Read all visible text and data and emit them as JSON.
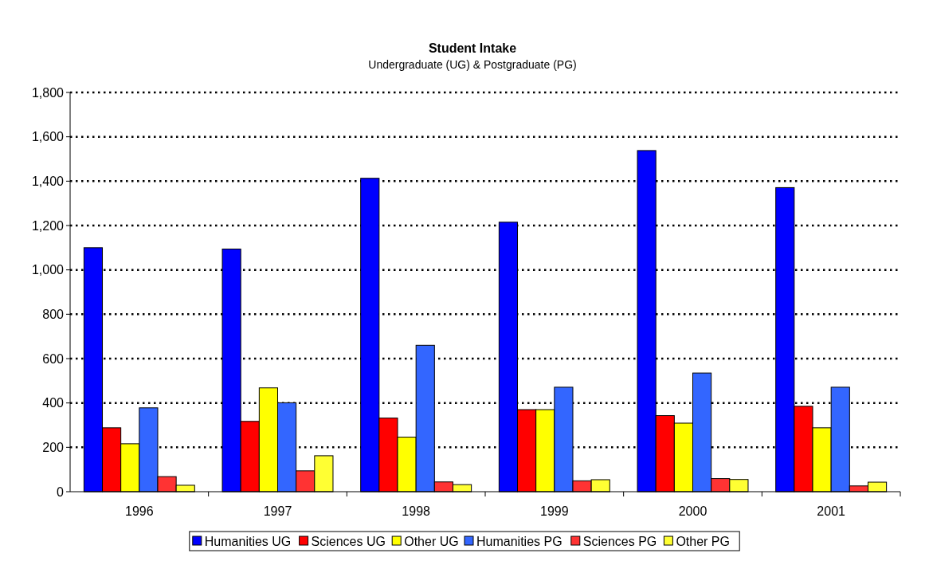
{
  "chart_data": {
    "type": "bar",
    "title": "Student Intake",
    "subtitle": "Undergraduate (UG) & Postgraduate (PG)",
    "categories": [
      "1996",
      "1997",
      "1998",
      "1999",
      "2000",
      "2001"
    ],
    "series": [
      {
        "name": "Humanities UG",
        "color": "#0000ff",
        "values": [
          1100,
          1094,
          1413,
          1215,
          1538,
          1371
        ]
      },
      {
        "name": "Sciences UG",
        "color": "#ff0000",
        "values": [
          288,
          317,
          332,
          370,
          343,
          385
        ]
      },
      {
        "name": "Other UG",
        "color": "#ffff00",
        "values": [
          216,
          468,
          246,
          370,
          309,
          288
        ]
      },
      {
        "name": "Humanities PG",
        "color": "#3366ff",
        "values": [
          378,
          401,
          660,
          471,
          535,
          471
        ]
      },
      {
        "name": "Sciences PG",
        "color": "#ff3333",
        "values": [
          68,
          94,
          44,
          49,
          59,
          26
        ]
      },
      {
        "name": "Other PG",
        "color": "#ffff33",
        "values": [
          29,
          162,
          32,
          54,
          55,
          43
        ]
      }
    ],
    "ylim": [
      0,
      1800
    ],
    "yticks": [
      {
        "value": 0,
        "label": "0"
      },
      {
        "value": 200,
        "label": "200"
      },
      {
        "value": 400,
        "label": "400"
      },
      {
        "value": 600,
        "label": "600"
      },
      {
        "value": 800,
        "label": "800"
      },
      {
        "value": 1000,
        "label": "1,000"
      },
      {
        "value": 1200,
        "label": "1,200"
      },
      {
        "value": 1400,
        "label": "1,400"
      },
      {
        "value": 1600,
        "label": "1,600"
      },
      {
        "value": 1800,
        "label": "1,800"
      }
    ],
    "grid": "y",
    "legend": "bottom"
  }
}
